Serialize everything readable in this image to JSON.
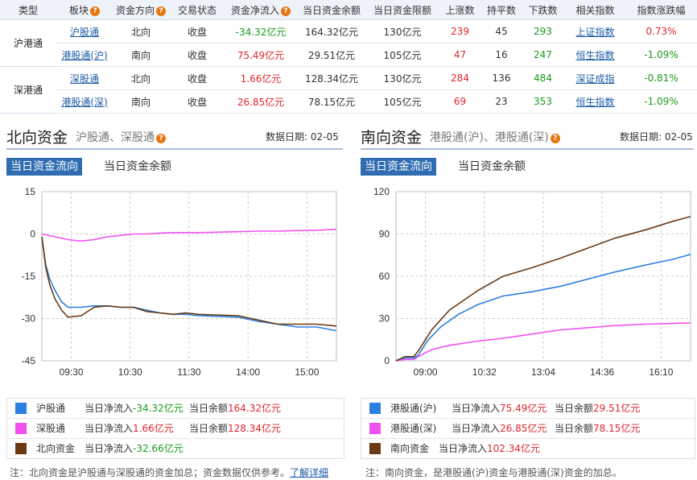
{
  "table": {
    "headers": [
      "类型",
      "板块",
      "资金方向",
      "交易状态",
      "资金净流入",
      "当日资金余额",
      "当日资金限额",
      "上涨数",
      "持平数",
      "下跌数",
      "相关指数",
      "指数涨跌幅"
    ],
    "help_mark": "?",
    "groups": [
      {
        "type": "沪港通",
        "rows": [
          {
            "board": "沪股通",
            "direction": "北向",
            "status": "收盘",
            "net": "-34.32亿元",
            "balance": "164.32亿元",
            "limit": "130亿元",
            "up": "239",
            "flat": "45",
            "down": "293",
            "index": "上证指数",
            "change": "0.73%"
          },
          {
            "board": "港股通(沪)",
            "direction": "南向",
            "status": "收盘",
            "net": "75.49亿元",
            "balance": "29.51亿元",
            "limit": "105亿元",
            "up": "47",
            "flat": "16",
            "down": "247",
            "index": "恒生指数",
            "change": "-1.09%"
          }
        ]
      },
      {
        "type": "深港通",
        "rows": [
          {
            "board": "深股通",
            "direction": "北向",
            "status": "收盘",
            "net": "1.66亿元",
            "balance": "128.34亿元",
            "limit": "130亿元",
            "up": "284",
            "flat": "136",
            "down": "484",
            "index": "深证成指",
            "change": "-0.81%"
          },
          {
            "board": "港股通(深)",
            "direction": "南向",
            "status": "收盘",
            "net": "26.85亿元",
            "balance": "78.15亿元",
            "limit": "105亿元",
            "up": "69",
            "flat": "23",
            "down": "353",
            "index": "恒生指数",
            "change": "-1.09%"
          }
        ]
      }
    ]
  },
  "north": {
    "title": "北向资金",
    "subtitle": "沪股通、深股通",
    "date_label": "数据日期:",
    "date": "02-05",
    "tab_flow": "当日资金流向",
    "tab_balance": "当日资金余额",
    "legend": [
      {
        "name": "沪股通",
        "flow_label": "当日净流入",
        "flow": "-34.32亿元",
        "bal_label": "当日余额",
        "bal": "164.32亿元",
        "color": "#2b7fe0"
      },
      {
        "name": "深股通",
        "flow_label": "当日净流入",
        "flow": "1.66亿元",
        "bal_label": "当日余额",
        "bal": "128.34亿元",
        "color": "#f050f0"
      },
      {
        "name": "北向资金",
        "flow_label": "当日净流入",
        "flow": "-32.66亿元",
        "bal_label": "",
        "bal": "",
        "color": "#6b3a12"
      }
    ],
    "note": "注：北向资金是沪股通与深股通的资金加总；资金数据仅供参考。",
    "note_link": "了解详细"
  },
  "south": {
    "title": "南向资金",
    "subtitle": "港股通(沪)、港股通(深)",
    "date_label": "数据日期:",
    "date": "02-05",
    "tab_flow": "当日资金流向",
    "tab_balance": "当日资金余额",
    "legend": [
      {
        "name": "港股通(沪)",
        "flow_label": "当日净流入",
        "flow": "75.49亿元",
        "bal_label": "当日余额",
        "bal": "29.51亿元",
        "color": "#2b7fe0"
      },
      {
        "name": "港股通(深)",
        "flow_label": "当日净流入",
        "flow": "26.85亿元",
        "bal_label": "当日余额",
        "bal": "78.15亿元",
        "color": "#f050f0"
      },
      {
        "name": "南向资金",
        "flow_label": "当日净流入",
        "flow": "102.34亿元",
        "bal_label": "",
        "bal": "",
        "color": "#6b3a12"
      }
    ],
    "note": "注：南向资金，是港股通(沪)资金与港股通(深)资金的加总。"
  },
  "colors": {
    "up": "#e0262b",
    "down": "#1a9a1a",
    "link": "#1b5aa6",
    "accent": "#2f6cb2"
  },
  "chart_data": [
    {
      "type": "line",
      "x": [
        "09:30",
        "10:30",
        "11:30",
        "14:00",
        "15:00"
      ],
      "ylim": [
        -45,
        15
      ],
      "yticks": [
        15,
        0,
        -15,
        -30,
        -45
      ],
      "grid": true,
      "series": [
        {
          "name": "沪股通",
          "color": "#2b7fe0",
          "points": [
            [
              0,
              -1
            ],
            [
              3,
              -11
            ],
            [
              6,
              -16
            ],
            [
              10,
              -20
            ],
            [
              15,
              -24
            ],
            [
              20,
              -26
            ],
            [
              30,
              -26
            ],
            [
              40,
              -25.5
            ],
            [
              50,
              -25.5
            ],
            [
              60,
              -26
            ],
            [
              70,
              -26
            ],
            [
              80,
              -27
            ],
            [
              90,
              -28
            ],
            [
              100,
              -28.5
            ],
            [
              110,
              -28.5
            ],
            [
              120,
              -29
            ],
            [
              150,
              -29.5
            ],
            [
              165,
              -31
            ],
            [
              180,
              -32
            ],
            [
              195,
              -33
            ],
            [
              210,
              -33
            ],
            [
              225,
              -34.3
            ]
          ]
        },
        {
          "name": "深股通",
          "color": "#f050f0",
          "points": [
            [
              0,
              0
            ],
            [
              10,
              -1
            ],
            [
              20,
              -2
            ],
            [
              30,
              -2.5
            ],
            [
              40,
              -2
            ],
            [
              50,
              -1
            ],
            [
              60,
              -0.5
            ],
            [
              70,
              0
            ],
            [
              80,
              0
            ],
            [
              90,
              0.3
            ],
            [
              100,
              0.5
            ],
            [
              110,
              0.5
            ],
            [
              120,
              0.5
            ],
            [
              150,
              0.8
            ],
            [
              165,
              1
            ],
            [
              180,
              1
            ],
            [
              195,
              1.2
            ],
            [
              210,
              1.3
            ],
            [
              225,
              1.66
            ]
          ]
        },
        {
          "name": "北向资金",
          "color": "#6b3a12",
          "points": [
            [
              0,
              -1
            ],
            [
              3,
              -12
            ],
            [
              6,
              -18
            ],
            [
              10,
              -23
            ],
            [
              15,
              -27
            ],
            [
              20,
              -29.5
            ],
            [
              30,
              -29
            ],
            [
              40,
              -26
            ],
            [
              50,
              -25.5
            ],
            [
              60,
              -26
            ],
            [
              70,
              -26
            ],
            [
              80,
              -27.5
            ],
            [
              90,
              -28
            ],
            [
              100,
              -28.5
            ],
            [
              110,
              -28
            ],
            [
              120,
              -28.5
            ],
            [
              150,
              -29
            ],
            [
              165,
              -30.5
            ],
            [
              180,
              -32
            ],
            [
              195,
              -32
            ],
            [
              210,
              -32
            ],
            [
              225,
              -32.66
            ]
          ]
        }
      ]
    },
    {
      "type": "line",
      "x": [
        "09:00",
        "10:32",
        "13:04",
        "14:36",
        "16:10"
      ],
      "ylim": [
        0,
        120
      ],
      "yticks": [
        120,
        90,
        60,
        30,
        0
      ],
      "grid": true,
      "series": [
        {
          "name": "港股通(沪)",
          "color": "#2b7fe0",
          "points": [
            [
              0,
              0
            ],
            [
              10,
              2
            ],
            [
              20,
              2
            ],
            [
              25,
              4
            ],
            [
              35,
              14
            ],
            [
              50,
              24
            ],
            [
              70,
              33
            ],
            [
              92,
              40
            ],
            [
              120,
              46
            ],
            [
              152,
              49
            ],
            [
              185,
              53
            ],
            [
              215,
              58
            ],
            [
              245,
              63
            ],
            [
              280,
              68
            ],
            [
              310,
              72
            ],
            [
              330,
              75.5
            ]
          ]
        },
        {
          "name": "港股通(深)",
          "color": "#f050f0",
          "points": [
            [
              0,
              0
            ],
            [
              10,
              1
            ],
            [
              20,
              1
            ],
            [
              25,
              3
            ],
            [
              40,
              8
            ],
            [
              60,
              11
            ],
            [
              92,
              14
            ],
            [
              120,
              16
            ],
            [
              152,
              19
            ],
            [
              185,
              22
            ],
            [
              215,
              23.5
            ],
            [
              245,
              25
            ],
            [
              280,
              26
            ],
            [
              310,
              26.5
            ],
            [
              330,
              26.85
            ]
          ]
        },
        {
          "name": "南向资金",
          "color": "#6b3a12",
          "points": [
            [
              0,
              0
            ],
            [
              10,
              3
            ],
            [
              20,
              3
            ],
            [
              25,
              7
            ],
            [
              40,
              22
            ],
            [
              60,
              36
            ],
            [
              92,
              50
            ],
            [
              120,
              60
            ],
            [
              152,
              66
            ],
            [
              185,
              73
            ],
            [
              215,
              80
            ],
            [
              245,
              87
            ],
            [
              280,
              93
            ],
            [
              310,
              99
            ],
            [
              330,
              102.34
            ]
          ]
        }
      ]
    }
  ]
}
